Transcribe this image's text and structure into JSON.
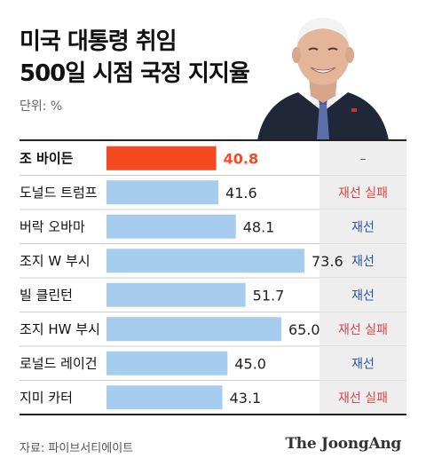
{
  "title_line1": "미국 대통령 취임",
  "title_line2": "500일 시점 국정 지지율",
  "unit": "단위: %",
  "source": "자료: 파이브서티에이트",
  "logo": "The JoongAng",
  "colors": {
    "highlight": "#f5491f",
    "bar": "#a6cdee",
    "result_fail": "#e04545",
    "result_ok": "#2f54a0",
    "row_shade": "#eeeeee"
  },
  "chart_data": {
    "type": "bar",
    "orientation": "horizontal",
    "categories": [
      "조 바이든",
      "도널드 트럼프",
      "버락 오바마",
      "조지 W 부시",
      "빌 클린턴",
      "조지 HW 부시",
      "로널드 레이건",
      "지미 카터"
    ],
    "values": [
      40.8,
      41.6,
      48.1,
      73.6,
      51.7,
      65.0,
      45.0,
      43.1
    ],
    "value_labels": [
      "40.8",
      "41.6",
      "48.1",
      "73.6",
      "51.7",
      "65.0",
      "45.0",
      "43.1"
    ],
    "results": [
      "–",
      "재선 실패",
      "재선",
      "재선",
      "재선",
      "재선 실패",
      "재선",
      "재선 실패"
    ],
    "highlight_index": 0,
    "xlim": [
      0,
      80
    ],
    "title": "",
    "xlabel": "",
    "ylabel": ""
  }
}
